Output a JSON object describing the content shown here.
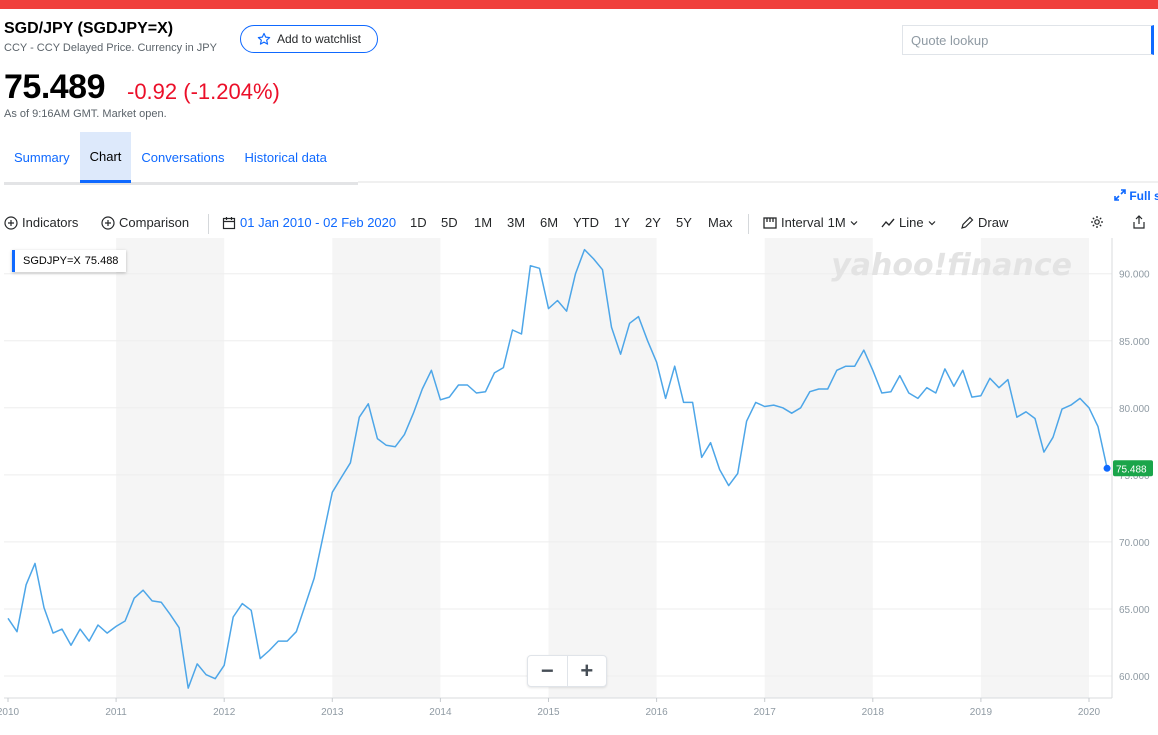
{
  "header": {
    "title": "SGD/JPY (SGDJPY=X)",
    "subtitle": "CCY - CCY Delayed Price. Currency in JPY",
    "watchlist_label": "Add to watchlist",
    "quote_placeholder": "Quote lookup",
    "price": "75.489",
    "change": "-0.92 (-1.204%)",
    "as_of": "As of 9:16AM GMT. Market open."
  },
  "tabs": [
    {
      "label": "Summary"
    },
    {
      "label": "Chart"
    },
    {
      "label": "Conversations"
    },
    {
      "label": "Historical data"
    }
  ],
  "active_tab": "Chart",
  "fullscreen_label": "Full s",
  "toolbar": {
    "indicators": "Indicators",
    "comparison": "Comparison",
    "date_range": "01 Jan 2010 - 02 Feb 2020",
    "ranges": [
      "1D",
      "5D",
      "1M",
      "3M",
      "6M",
      "YTD",
      "1Y",
      "2Y",
      "5Y",
      "Max"
    ],
    "interval_label": "Interval",
    "interval_value": "1M",
    "chart_type": "Line",
    "draw": "Draw"
  },
  "legend": {
    "symbol": "SGDJPY=X",
    "value": "75.488"
  },
  "watermark": "yahoo!finance",
  "zoom": {
    "minus": "−",
    "plus": "+"
  },
  "colors": {
    "accent": "#0f69ff",
    "negative": "#eb0f29",
    "line": "#4da6e8",
    "last_tag": "#1aa54a",
    "top_bar": "#f0403c"
  },
  "chart_data": {
    "type": "line",
    "title": "",
    "xlabel": "",
    "ylabel": "",
    "ylim": [
      59.5,
      92.5
    ],
    "y_ticks": [
      "60.000",
      "65.000",
      "70.000",
      "75.000",
      "80.000",
      "85.000",
      "90.000"
    ],
    "x_ticks": [
      "2010",
      "2011",
      "2012",
      "2013",
      "2014",
      "2015",
      "2016",
      "2017",
      "2018",
      "2019",
      "2020"
    ],
    "last_value_label": "75.488",
    "series": [
      {
        "name": "SGDJPY=X",
        "x": [
          2010.0,
          2010.083,
          2010.167,
          2010.25,
          2010.333,
          2010.417,
          2010.5,
          2010.583,
          2010.667,
          2010.75,
          2010.833,
          2010.917,
          2011.0,
          2011.083,
          2011.167,
          2011.25,
          2011.333,
          2011.417,
          2011.5,
          2011.583,
          2011.667,
          2011.75,
          2011.833,
          2011.917,
          2012.0,
          2012.083,
          2012.167,
          2012.25,
          2012.333,
          2012.417,
          2012.5,
          2012.583,
          2012.667,
          2012.75,
          2012.833,
          2012.917,
          2013.0,
          2013.083,
          2013.167,
          2013.25,
          2013.333,
          2013.417,
          2013.5,
          2013.583,
          2013.667,
          2013.75,
          2013.833,
          2013.917,
          2014.0,
          2014.083,
          2014.167,
          2014.25,
          2014.333,
          2014.417,
          2014.5,
          2014.583,
          2014.667,
          2014.75,
          2014.833,
          2014.917,
          2015.0,
          2015.083,
          2015.167,
          2015.25,
          2015.333,
          2015.417,
          2015.5,
          2015.583,
          2015.667,
          2015.75,
          2015.833,
          2015.917,
          2016.0,
          2016.083,
          2016.167,
          2016.25,
          2016.333,
          2016.417,
          2016.5,
          2016.583,
          2016.667,
          2016.75,
          2016.833,
          2016.917,
          2017.0,
          2017.083,
          2017.167,
          2017.25,
          2017.333,
          2017.417,
          2017.5,
          2017.583,
          2017.667,
          2017.75,
          2017.833,
          2017.917,
          2018.0,
          2018.083,
          2018.167,
          2018.25,
          2018.333,
          2018.417,
          2018.5,
          2018.583,
          2018.667,
          2018.75,
          2018.833,
          2018.917,
          2019.0,
          2019.083,
          2019.167,
          2019.25,
          2019.333,
          2019.417,
          2019.5,
          2019.583,
          2019.667,
          2019.75,
          2019.833,
          2019.917,
          2020.0,
          2020.083
        ],
        "values": [
          64.3,
          63.3,
          66.8,
          68.4,
          65.1,
          63.2,
          63.5,
          62.3,
          63.5,
          62.6,
          63.8,
          63.2,
          63.7,
          64.1,
          65.8,
          66.4,
          65.6,
          65.5,
          64.6,
          63.6,
          59.1,
          60.9,
          60.1,
          59.8,
          60.8,
          64.4,
          65.4,
          64.9,
          61.3,
          61.9,
          62.6,
          62.6,
          63.3,
          65.3,
          67.3,
          70.5,
          73.7,
          74.8,
          75.9,
          79.3,
          80.3,
          77.7,
          77.2,
          77.1,
          78.0,
          79.6,
          81.4,
          82.8,
          80.6,
          80.8,
          81.7,
          81.7,
          81.1,
          81.2,
          82.6,
          83.0,
          85.8,
          85.5,
          90.6,
          90.4,
          87.4,
          88.0,
          87.2,
          90.0,
          91.8,
          91.1,
          90.3,
          86.0,
          84.0,
          86.3,
          86.8,
          85.0,
          83.4,
          80.7,
          83.1,
          80.4,
          80.4,
          76.3,
          77.4,
          75.4,
          74.2,
          75.1,
          79.0,
          80.4,
          80.1,
          80.2,
          80.0,
          79.6,
          80.0,
          81.2,
          81.4,
          81.4,
          82.8,
          83.1,
          83.1,
          84.3,
          82.8,
          81.1,
          81.2,
          82.4,
          81.1,
          80.7,
          81.5,
          81.1,
          82.9,
          81.6,
          82.8,
          80.8,
          80.9,
          82.2,
          81.5,
          82.1,
          79.3,
          79.7,
          79.2,
          76.7,
          77.8,
          79.9,
          80.2,
          80.7,
          80.0,
          78.6
        ],
        "last": {
          "x": 2020.167,
          "value": 75.488
        }
      }
    ],
    "shaded_years": [
      2011,
      2013,
      2015,
      2017,
      2019
    ],
    "grid": true,
    "y_axis_side": "right"
  }
}
